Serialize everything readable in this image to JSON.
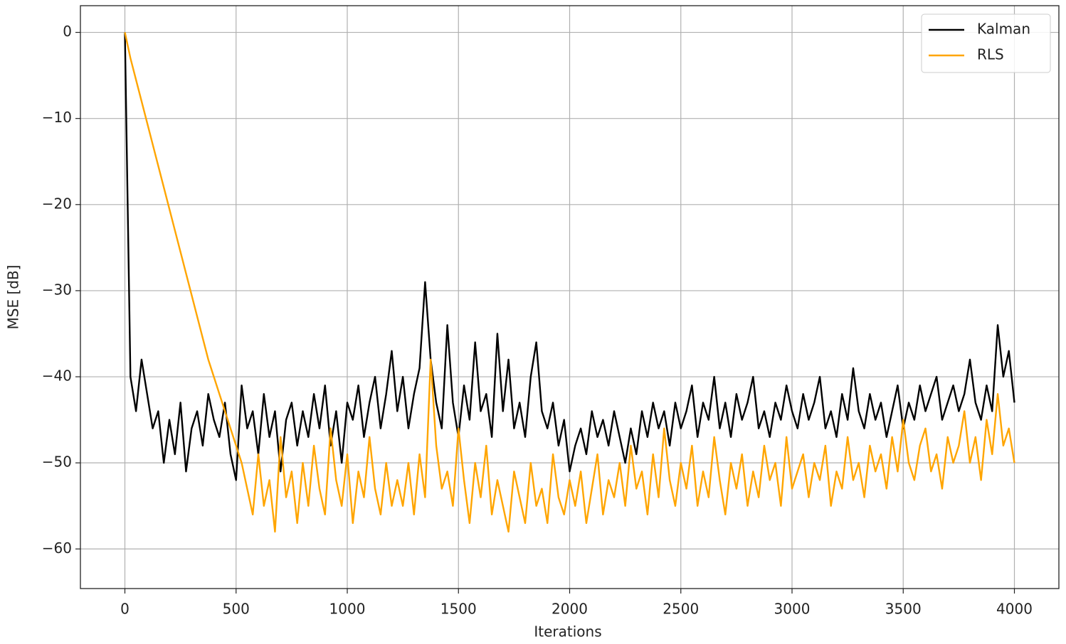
{
  "chart_data": {
    "type": "line",
    "xlabel": "Iterations",
    "ylabel": "MSE [dB]",
    "xlim": [
      -200,
      4200
    ],
    "ylim": [
      -64.6,
      3.1
    ],
    "xticks": [
      0,
      500,
      1000,
      1500,
      2000,
      2500,
      3000,
      3500,
      4000
    ],
    "yticks": [
      0,
      {
        "value": -10,
        "label": "−10"
      },
      {
        "value": -20,
        "label": "−20"
      },
      {
        "value": -30,
        "label": "−30"
      },
      {
        "value": -40,
        "label": "−40"
      },
      {
        "value": -50,
        "label": "−50"
      },
      {
        "value": -60,
        "label": "−60"
      }
    ],
    "grid": true,
    "legend": "upper right",
    "x": [
      0,
      25,
      50,
      75,
      100,
      125,
      150,
      175,
      200,
      225,
      250,
      275,
      300,
      325,
      350,
      375,
      400,
      425,
      450,
      475,
      500,
      525,
      550,
      575,
      600,
      625,
      650,
      675,
      700,
      725,
      750,
      775,
      800,
      825,
      850,
      875,
      900,
      925,
      950,
      975,
      1000,
      1025,
      1050,
      1075,
      1100,
      1125,
      1150,
      1175,
      1200,
      1225,
      1250,
      1275,
      1300,
      1325,
      1350,
      1375,
      1400,
      1425,
      1450,
      1475,
      1500,
      1525,
      1550,
      1575,
      1600,
      1625,
      1650,
      1675,
      1700,
      1725,
      1750,
      1775,
      1800,
      1825,
      1850,
      1875,
      1900,
      1925,
      1950,
      1975,
      2000,
      2025,
      2050,
      2075,
      2100,
      2125,
      2150,
      2175,
      2200,
      2225,
      2250,
      2275,
      2300,
      2325,
      2350,
      2375,
      2400,
      2425,
      2450,
      2475,
      2500,
      2525,
      2550,
      2575,
      2600,
      2625,
      2650,
      2675,
      2700,
      2725,
      2750,
      2775,
      2800,
      2825,
      2850,
      2875,
      2900,
      2925,
      2950,
      2975,
      3000,
      3025,
      3050,
      3075,
      3100,
      3125,
      3150,
      3175,
      3200,
      3225,
      3250,
      3275,
      3300,
      3325,
      3350,
      3375,
      3400,
      3425,
      3450,
      3475,
      3500,
      3525,
      3550,
      3575,
      3600,
      3625,
      3650,
      3675,
      3700,
      3725,
      3750,
      3775,
      3800,
      3825,
      3850,
      3875,
      3900,
      3925,
      3950,
      3975,
      4000
    ],
    "series": [
      {
        "name": "Kalman",
        "color": "#000000",
        "values": [
          0,
          -40,
          -44,
          -38,
          -42,
          -46,
          -44,
          -50,
          -45,
          -49,
          -43,
          -51,
          -46,
          -44,
          -48,
          -42,
          -45,
          -47,
          -43,
          -49,
          -52,
          -41,
          -46,
          -44,
          -49,
          -42,
          -47,
          -44,
          -51,
          -45,
          -43,
          -48,
          -44,
          -47,
          -42,
          -46,
          -41,
          -48,
          -44,
          -50,
          -43,
          -45,
          -41,
          -47,
          -43,
          -40,
          -46,
          -42,
          -37,
          -44,
          -40,
          -46,
          -42,
          -39,
          -29,
          -38,
          -43,
          -46,
          -34,
          -43,
          -47,
          -41,
          -45,
          -36,
          -44,
          -42,
          -47,
          -35,
          -44,
          -38,
          -46,
          -43,
          -47,
          -40,
          -36,
          -44,
          -46,
          -43,
          -48,
          -45,
          -51,
          -48,
          -46,
          -49,
          -44,
          -47,
          -45,
          -48,
          -44,
          -47,
          -50,
          -46,
          -49,
          -44,
          -47,
          -43,
          -46,
          -44,
          -48,
          -43,
          -46,
          -44,
          -41,
          -47,
          -43,
          -45,
          -40,
          -46,
          -43,
          -47,
          -42,
          -45,
          -43,
          -40,
          -46,
          -44,
          -47,
          -43,
          -45,
          -41,
          -44,
          -46,
          -42,
          -45,
          -43,
          -40,
          -46,
          -44,
          -47,
          -42,
          -45,
          -39,
          -44,
          -46,
          -42,
          -45,
          -43,
          -47,
          -44,
          -41,
          -46,
          -43,
          -45,
          -41,
          -44,
          -42,
          -40,
          -45,
          -43,
          -41,
          -44,
          -42,
          -38,
          -43,
          -45,
          -41,
          -44,
          -34,
          -40,
          -37,
          -43
        ]
      },
      {
        "name": "RLS",
        "color": "#ffa500",
        "values": [
          0,
          -3,
          -5.5,
          -8,
          -10.5,
          -13,
          -15.5,
          -18,
          -20.5,
          -23,
          -25.5,
          -28,
          -30.5,
          -33,
          -35.5,
          -38,
          -40,
          -42,
          -44,
          -46,
          -48,
          -50,
          -53,
          -56,
          -49,
          -55,
          -52,
          -58,
          -47,
          -54,
          -51,
          -57,
          -50,
          -55,
          -48,
          -53,
          -56,
          -46,
          -52,
          -55,
          -49,
          -57,
          -51,
          -54,
          -47,
          -53,
          -56,
          -50,
          -55,
          -52,
          -55,
          -50,
          -56,
          -49,
          -54,
          -38,
          -48,
          -53,
          -51,
          -55,
          -46,
          -52,
          -57,
          -50,
          -54,
          -48,
          -56,
          -52,
          -55,
          -58,
          -51,
          -54,
          -57,
          -50,
          -55,
          -53,
          -57,
          -49,
          -54,
          -56,
          -52,
          -55,
          -51,
          -57,
          -53,
          -49,
          -56,
          -52,
          -54,
          -50,
          -55,
          -48,
          -53,
          -51,
          -56,
          -49,
          -54,
          -46,
          -52,
          -55,
          -50,
          -53,
          -48,
          -55,
          -51,
          -54,
          -47,
          -52,
          -56,
          -50,
          -53,
          -49,
          -55,
          -51,
          -54,
          -48,
          -52,
          -50,
          -55,
          -47,
          -53,
          -51,
          -49,
          -54,
          -50,
          -52,
          -48,
          -55,
          -51,
          -53,
          -47,
          -52,
          -50,
          -54,
          -48,
          -51,
          -49,
          -53,
          -47,
          -51,
          -45,
          -50,
          -52,
          -48,
          -46,
          -51,
          -49,
          -53,
          -47,
          -50,
          -48,
          -44,
          -50,
          -47,
          -52,
          -45,
          -49,
          -42,
          -48,
          -46,
          -50
        ]
      }
    ]
  }
}
